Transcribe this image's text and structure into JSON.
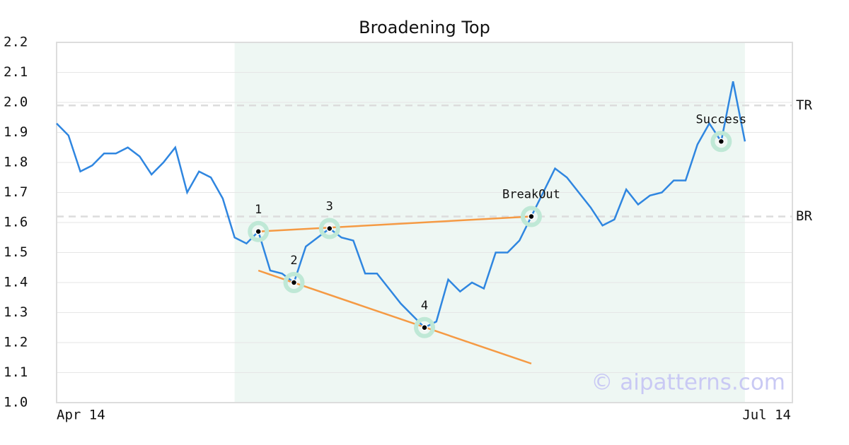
{
  "chart_data": {
    "type": "line",
    "title": "Broadening Top",
    "xlim": [
      0,
      62
    ],
    "xticks": [
      {
        "value": 0,
        "label": "Apr 14"
      },
      {
        "value": 62,
        "label": "Jul 14"
      }
    ],
    "ylim": [
      1,
      2.2
    ],
    "yticks": [
      {
        "value": 1,
        "label": "1.0"
      },
      1.1,
      1.2,
      1.3,
      1.4,
      1.5,
      1.6,
      1.7,
      1.8,
      1.9,
      {
        "value": 2,
        "label": "2.0"
      },
      2.1,
      2.2
    ],
    "grid": true,
    "series": [
      {
        "color": "#2f86e0",
        "values": [
          1.93,
          1.89,
          1.77,
          1.79,
          1.83,
          1.83,
          1.85,
          1.82,
          1.76,
          1.8,
          1.85,
          1.7,
          1.77,
          1.75,
          1.68,
          1.55,
          1.53,
          1.57,
          1.44,
          1.43,
          1.4,
          1.52,
          1.55,
          1.58,
          1.55,
          1.54,
          1.43,
          1.43,
          1.38,
          1.33,
          1.29,
          1.25,
          1.27,
          1.41,
          1.37,
          1.4,
          1.38,
          1.5,
          1.5,
          1.54,
          1.62,
          1.7,
          1.78,
          1.75,
          1.7,
          1.65,
          1.59,
          1.61,
          1.71,
          1.66,
          1.69,
          1.7,
          1.74,
          1.74,
          1.86,
          1.93,
          1.87,
          2.07,
          1.87
        ]
      }
    ],
    "highlight_range": [
      15,
      58
    ],
    "highlight_color": "#eef7f3",
    "levels": [
      {
        "label": "TR",
        "value": 1.99
      },
      {
        "label": "BR",
        "value": 1.62
      }
    ],
    "trendlines": [
      {
        "color": "#f59a44",
        "points": [
          [
            17,
            1.57
          ],
          [
            40,
            1.62
          ]
        ]
      },
      {
        "color": "#f59a44",
        "points": [
          [
            17,
            1.44
          ],
          [
            40,
            1.13
          ]
        ]
      }
    ],
    "annotations": [
      {
        "text": "1",
        "x": 17
      },
      {
        "text": "2",
        "x": 20
      },
      {
        "text": "3",
        "x": 23
      },
      {
        "text": "4",
        "x": 31
      },
      {
        "text": "BreakOut",
        "x": 40
      },
      {
        "text": "Success",
        "x": 56
      }
    ],
    "marker_color": "#bfe8d6",
    "watermark": "© aipatterns.com"
  }
}
